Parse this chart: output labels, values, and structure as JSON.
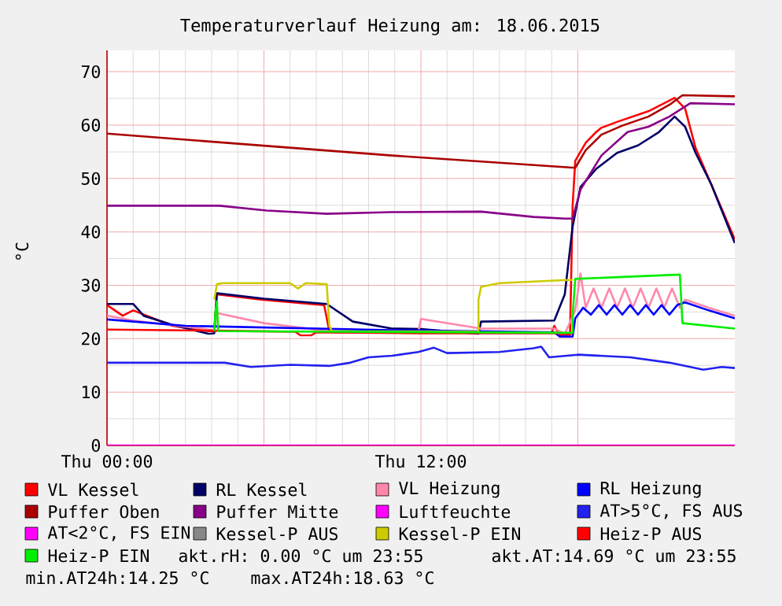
{
  "chart_data": {
    "type": "line",
    "title": "Temperaturverlauf Heizung am: 18.06.2015",
    "ylabel": "°C",
    "xlim": [
      "2015-06-18T00:00",
      "2015-06-19T00:00"
    ],
    "ylim": [
      0,
      74
    ],
    "xticks": [
      {
        "value": "2015-06-18T00:00",
        "label": "Thu 00:00"
      },
      {
        "value": "2015-06-18T06:00",
        "label": null
      },
      {
        "value": "2015-06-18T12:00",
        "label": "Thu 12:00"
      },
      {
        "value": "2015-06-18T18:00",
        "label": null
      }
    ],
    "yticks": [
      0,
      10,
      20,
      30,
      40,
      50,
      60,
      70
    ],
    "grid": true,
    "legend": "bottom",
    "marker": "none",
    "line_style": "solid",
    "series": [
      {
        "name": "VL Kessel",
        "color": "#ff0000",
        "x": [
          "2015-06-18T00:00",
          "2015-06-18T00:36",
          "2015-06-18T01:00",
          "2015-06-18T02:30",
          "2015-06-18T03:54",
          "2015-06-18T04:06",
          "2015-06-18T04:12",
          "2015-06-18T05:54",
          "2015-06-18T08:18",
          "2015-06-18T08:30",
          "2015-06-18T08:36",
          "2015-06-18T12:00",
          "2015-06-18T17:00",
          "2015-06-18T17:06",
          "2015-06-18T17:18",
          "2015-06-18T17:42",
          "2015-06-18T17:48",
          "2015-06-18T17:54",
          "2015-06-18T18:18",
          "2015-06-18T18:42",
          "2015-06-18T18:54",
          "2015-06-18T19:30",
          "2015-06-18T20:42",
          "2015-06-18T21:42",
          "2015-06-18T22:06",
          "2015-06-18T22:30",
          "2015-06-18T23:06",
          "2015-06-19T00:00"
        ],
        "values": [
          26.3,
          24.3,
          25.3,
          22.4,
          21.4,
          21.4,
          28.3,
          27.3,
          26.3,
          21.4,
          21.2,
          21.1,
          21.2,
          22.4,
          20.6,
          20.8,
          44.9,
          53.3,
          56.7,
          58.7,
          59.5,
          60.6,
          62.6,
          65.1,
          63.1,
          55.7,
          48.9,
          38.6
        ]
      },
      {
        "name": "RL Kessel",
        "color": "#000066",
        "x": [
          "2015-06-18T00:00",
          "2015-06-18T01:00",
          "2015-06-18T01:24",
          "2015-06-18T02:30",
          "2015-06-18T03:54",
          "2015-06-18T04:06",
          "2015-06-18T04:12",
          "2015-06-18T06:00",
          "2015-06-18T08:24",
          "2015-06-18T09:24",
          "2015-06-18T10:54",
          "2015-06-18T12:00",
          "2015-06-18T14:12",
          "2015-06-18T14:18",
          "2015-06-18T17:06",
          "2015-06-18T17:30",
          "2015-06-18T17:48",
          "2015-06-18T18:06",
          "2015-06-18T18:42",
          "2015-06-18T19:30",
          "2015-06-18T20:18",
          "2015-06-18T21:06",
          "2015-06-18T21:42",
          "2015-06-18T22:06",
          "2015-06-18T22:30",
          "2015-06-18T23:06",
          "2015-06-19T00:00"
        ],
        "values": [
          26.5,
          26.5,
          24.3,
          22.6,
          20.9,
          21.0,
          28.5,
          27.5,
          26.5,
          23.2,
          21.9,
          21.8,
          20.9,
          23.2,
          23.4,
          28.3,
          41.0,
          48.4,
          51.8,
          54.8,
          56.2,
          58.7,
          61.6,
          59.7,
          54.8,
          48.9,
          37.9
        ]
      },
      {
        "name": "VL Heizung",
        "color": "#ff88aa",
        "x": [
          "2015-06-18T00:00",
          "2015-06-18T01:00",
          "2015-06-18T04:06",
          "2015-06-18T04:12",
          "2015-06-18T06:00",
          "2015-06-18T08:30",
          "2015-06-18T10:54",
          "2015-06-18T11:54",
          "2015-06-18T12:00",
          "2015-06-18T14:18",
          "2015-06-18T17:06",
          "2015-06-18T17:30",
          "2015-06-18T17:54",
          "2015-06-18T18:06",
          "2015-06-18T18:18",
          "2015-06-18T18:36",
          "2015-06-18T18:54",
          "2015-06-18T19:12",
          "2015-06-18T19:30",
          "2015-06-18T19:48",
          "2015-06-18T20:06",
          "2015-06-18T20:24",
          "2015-06-18T20:42",
          "2015-06-18T21:00",
          "2015-06-18T21:18",
          "2015-06-18T21:36",
          "2015-06-18T21:54",
          "2015-06-18T22:06",
          "2015-06-18T23:00",
          "2015-06-19T00:00"
        ],
        "values": [
          24.3,
          23.4,
          21.6,
          24.8,
          22.9,
          21.4,
          21.4,
          21.2,
          23.7,
          21.9,
          21.9,
          20.9,
          25.3,
          32.2,
          25.8,
          29.4,
          25.8,
          29.4,
          25.8,
          29.4,
          25.8,
          29.4,
          25.8,
          29.4,
          25.8,
          29.4,
          25.8,
          27.3,
          25.8,
          24.3
        ]
      },
      {
        "name": "RL Heizung",
        "color": "#0000ff",
        "x": [
          "2015-06-18T00:00",
          "2015-06-18T03:00",
          "2015-06-18T10:54",
          "2015-06-18T17:06",
          "2015-06-18T17:18",
          "2015-06-18T17:48",
          "2015-06-18T17:54",
          "2015-06-18T18:12",
          "2015-06-18T18:30",
          "2015-06-18T18:48",
          "2015-06-18T19:06",
          "2015-06-18T19:24",
          "2015-06-18T19:42",
          "2015-06-18T20:00",
          "2015-06-18T20:18",
          "2015-06-18T20:36",
          "2015-06-18T20:54",
          "2015-06-18T21:12",
          "2015-06-18T21:30",
          "2015-06-18T21:48",
          "2015-06-18T22:06",
          "2015-06-18T23:00",
          "2015-06-19T00:00"
        ],
        "values": [
          23.6,
          22.4,
          21.6,
          21.2,
          20.4,
          20.4,
          23.8,
          25.8,
          24.5,
          26.3,
          24.5,
          26.3,
          24.5,
          26.3,
          24.5,
          26.3,
          24.5,
          26.3,
          24.5,
          26.3,
          26.8,
          25.3,
          23.8
        ]
      },
      {
        "name": "Puffer Oben",
        "color": "#aa0000",
        "x": [
          "2015-06-18T00:00",
          "2015-06-18T10:54",
          "2015-06-18T17:54",
          "2015-06-18T18:18",
          "2015-06-18T18:54",
          "2015-06-18T19:42",
          "2015-06-18T20:42",
          "2015-06-18T21:30",
          "2015-06-18T22:00",
          "2015-06-19T00:00"
        ],
        "values": [
          58.4,
          54.3,
          52.0,
          55.3,
          58.2,
          59.9,
          61.6,
          63.8,
          65.6,
          65.4
        ]
      },
      {
        "name": "Puffer Mitte",
        "color": "#880088",
        "x": [
          "2015-06-18T00:00",
          "2015-06-18T04:18",
          "2015-06-18T06:06",
          "2015-06-18T08:24",
          "2015-06-18T10:54",
          "2015-06-18T14:18",
          "2015-06-18T16:18",
          "2015-06-18T17:30",
          "2015-06-18T17:48",
          "2015-06-18T18:06",
          "2015-06-18T18:54",
          "2015-06-18T19:54",
          "2015-06-18T20:42",
          "2015-06-18T21:30",
          "2015-06-18T22:18",
          "2015-06-19T00:00"
        ],
        "values": [
          44.9,
          44.9,
          44.0,
          43.4,
          43.7,
          43.8,
          42.8,
          42.5,
          42.5,
          47.9,
          54.3,
          58.7,
          59.7,
          61.6,
          64.1,
          63.9
        ]
      },
      {
        "name": "Luftfeuchte",
        "color": "#ff00ff",
        "x": [
          "2015-06-18T00:00",
          "2015-06-19T00:00"
        ],
        "values": [
          0,
          0
        ]
      },
      {
        "name": "AT>5°C, FS AUS",
        "color": "#2222ee",
        "x": [
          "2015-06-18T00:00",
          "2015-06-18T03:00",
          "2015-06-18T04:30",
          "2015-06-18T05:30",
          "2015-06-18T07:00",
          "2015-06-18T08:30",
          "2015-06-18T09:18",
          "2015-06-18T10:00",
          "2015-06-18T10:54",
          "2015-06-18T11:54",
          "2015-06-18T12:30",
          "2015-06-18T13:00",
          "2015-06-18T15:00",
          "2015-06-18T16:18",
          "2015-06-18T16:36",
          "2015-06-18T16:54",
          "2015-06-18T18:00",
          "2015-06-18T20:00",
          "2015-06-18T21:30",
          "2015-06-18T22:48",
          "2015-06-18T23:30",
          "2015-06-19T00:00"
        ],
        "values": [
          15.5,
          15.5,
          15.5,
          14.7,
          15.1,
          14.9,
          15.5,
          16.5,
          16.8,
          17.5,
          18.3,
          17.3,
          17.5,
          18.2,
          18.5,
          16.5,
          17.0,
          16.5,
          15.5,
          14.2,
          14.7,
          14.5
        ]
      },
      {
        "name": "AT<2°C, FS EIN",
        "color": "#ff00ff"
      },
      {
        "name": "Kessel-P AUS",
        "color": "#888888"
      },
      {
        "name": "Kessel-P EIN",
        "color": "#cccc00",
        "x": [
          "2015-06-18T04:06",
          "2015-06-18T04:12",
          "2015-06-18T04:24",
          "2015-06-18T07:00",
          "2015-06-18T07:18",
          "2015-06-18T07:36",
          "2015-06-18T08:24",
          "2015-06-18T08:30",
          "2015-06-18T08:36",
          "2015-06-18T14:12",
          "2015-06-18T14:12",
          "2015-06-18T14:18",
          "2015-06-18T15:00",
          "2015-06-18T17:36",
          "2015-06-18T17:48"
        ],
        "values": [
          27.3,
          30.2,
          30.4,
          30.4,
          29.4,
          30.4,
          30.2,
          22.4,
          21.4,
          21.3,
          27.3,
          29.7,
          30.4,
          31.0,
          31.0
        ]
      },
      {
        "name": "Heiz-P AUS",
        "color": "#ff0000",
        "x": [
          "2015-06-18T00:00",
          "2015-06-18T04:00",
          "2015-06-18T07:12",
          "2015-06-18T07:24",
          "2015-06-18T07:48",
          "2015-06-18T08:00",
          "2015-06-18T12:00",
          "2015-06-18T17:48"
        ],
        "values": [
          21.7,
          21.5,
          21.3,
          20.6,
          20.6,
          21.2,
          21.0,
          21.0
        ]
      },
      {
        "name": "Heiz-P EIN",
        "color": "#00ee00",
        "x": [
          "2015-06-18T04:06",
          "2015-06-18T04:09",
          "2015-06-18T04:12",
          "2015-06-18T04:15",
          "2015-06-18T17:48",
          "2015-06-18T17:48",
          "2015-06-18T17:54",
          "2015-06-18T21:54",
          "2015-06-18T22:00",
          "2015-06-19T00:00"
        ],
        "values": [
          21.4,
          25.3,
          27.0,
          21.4,
          21.1,
          24.3,
          31.2,
          32.0,
          22.9,
          21.9
        ]
      }
    ],
    "annotations": [
      "akt.rH: 0.00 °C um 23:55",
      "akt.AT:14.69 °C um 23:55",
      "min.AT24h:14.25 °C",
      "max.AT24h:18.63 °C"
    ]
  }
}
